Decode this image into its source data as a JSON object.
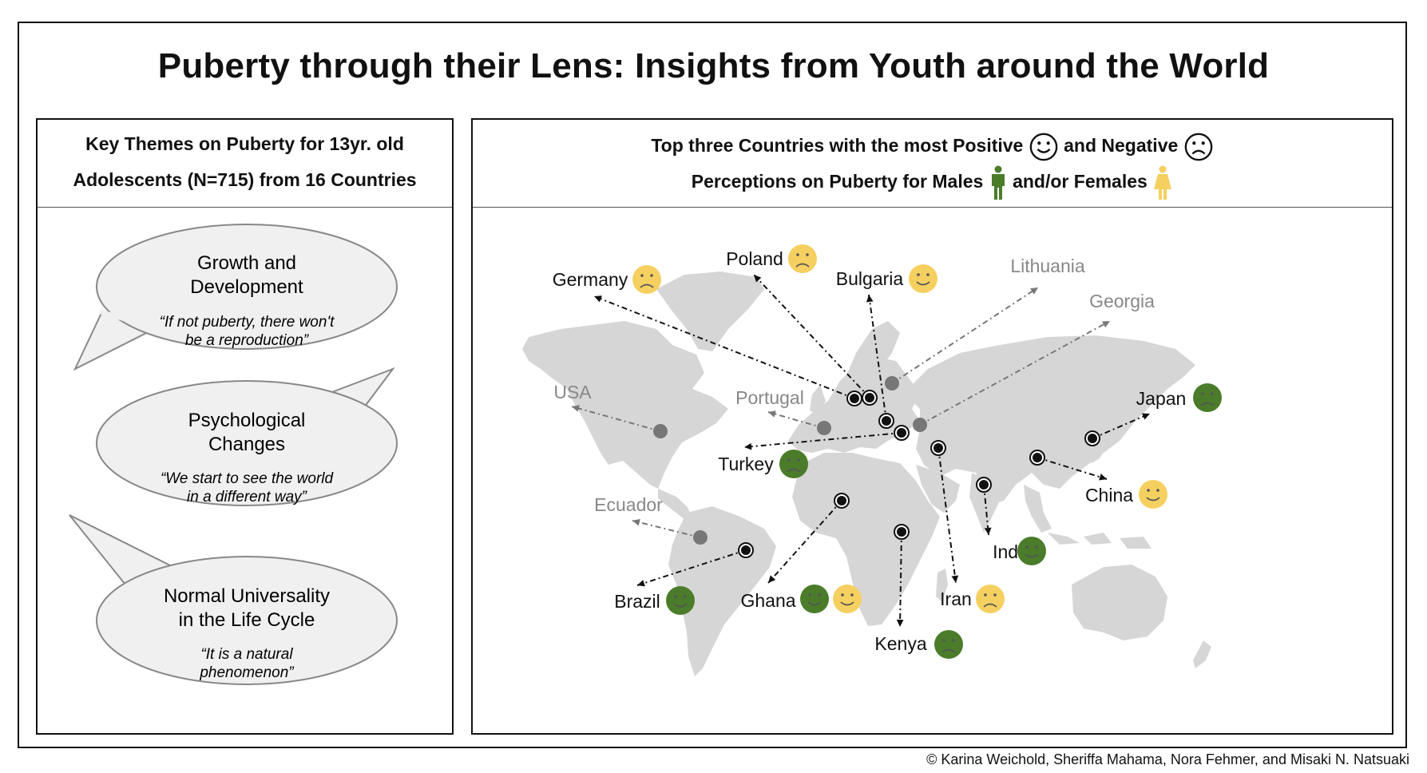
{
  "title": "Puberty through their Lens: Insights from Youth around the World",
  "left_panel": {
    "header_line1": "Key Themes on Puberty for 13yr. old",
    "header_line2": "Adolescents (N=715) from 16 Countries",
    "themes": [
      {
        "title_line1": "Growth and",
        "title_line2": "Development",
        "quote_line1": "“If not puberty, there won't",
        "quote_line2": "be a reproduction”"
      },
      {
        "title_line1": "Psychological",
        "title_line2": "Changes",
        "quote_line1": "“We start to see the world",
        "quote_line2": "in a different way”"
      },
      {
        "title_line1": "Normal Universality",
        "title_line2": "in the Life Cycle",
        "quote_line1": "“It is a natural",
        "quote_line2": "phenomenon”"
      }
    ]
  },
  "right_panel": {
    "header_line1_a": "Top three Countries with the most Positive",
    "header_line1_b": "and Negative",
    "header_line2_a": "Perceptions on Puberty for Males",
    "header_line2_b": "and/or Females"
  },
  "countries": [
    {
      "name": "Germany",
      "faces": [
        {
          "mood": "negative",
          "gender": "female"
        }
      ]
    },
    {
      "name": "Poland",
      "faces": [
        {
          "mood": "negative",
          "gender": "female"
        }
      ]
    },
    {
      "name": "Bulgaria",
      "faces": [
        {
          "mood": "positive",
          "gender": "female"
        }
      ]
    },
    {
      "name": "Lithuania",
      "faces": []
    },
    {
      "name": "Georgia",
      "faces": []
    },
    {
      "name": "USA",
      "faces": []
    },
    {
      "name": "Portugal",
      "faces": []
    },
    {
      "name": "Japan",
      "faces": [
        {
          "mood": "negative",
          "gender": "male"
        }
      ]
    },
    {
      "name": "Turkey",
      "faces": [
        {
          "mood": "negative",
          "gender": "male"
        }
      ]
    },
    {
      "name": "China",
      "faces": [
        {
          "mood": "positive",
          "gender": "female"
        }
      ]
    },
    {
      "name": "Ecuador",
      "faces": []
    },
    {
      "name": "India",
      "faces": [
        {
          "mood": "positive",
          "gender": "male"
        }
      ]
    },
    {
      "name": "Brazil",
      "faces": [
        {
          "mood": "positive",
          "gender": "male"
        }
      ]
    },
    {
      "name": "Ghana",
      "faces": [
        {
          "mood": "positive",
          "gender": "male"
        },
        {
          "mood": "positive",
          "gender": "female"
        }
      ]
    },
    {
      "name": "Iran",
      "faces": [
        {
          "mood": "negative",
          "gender": "female"
        }
      ]
    },
    {
      "name": "Kenya",
      "faces": [
        {
          "mood": "negative",
          "gender": "male"
        }
      ]
    }
  ],
  "colors": {
    "male": "#4a7c2a",
    "female": "#f5d060",
    "highlight_label": "#111111",
    "other_label": "#888888",
    "map": "#d6d6d6"
  },
  "copyright": "© Karina Weichold, Sheriffa Mahama, Nora Fehmer, and Misaki N. Natsuaki"
}
